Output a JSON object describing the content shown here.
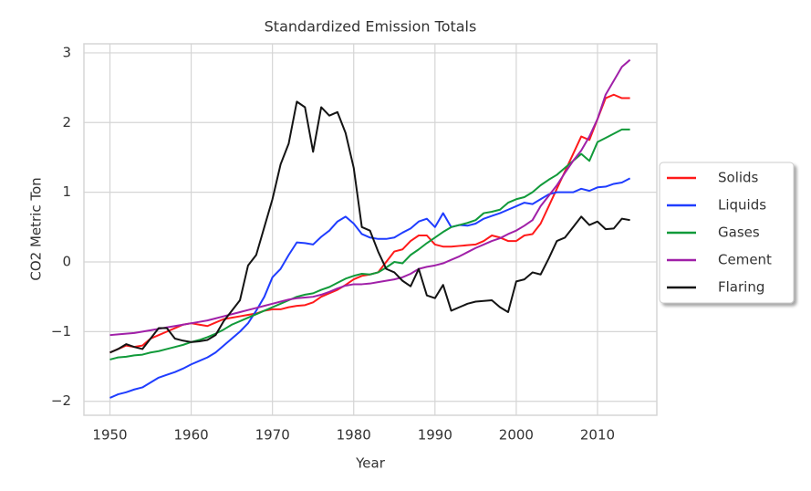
{
  "chart_data": {
    "type": "line",
    "title": "Standardized Emission Totals",
    "x_label": "Year",
    "y_label": "CO2 Metric Ton",
    "x": [
      1950,
      1951,
      1952,
      1953,
      1954,
      1955,
      1956,
      1957,
      1958,
      1959,
      1960,
      1961,
      1962,
      1963,
      1964,
      1965,
      1966,
      1967,
      1968,
      1969,
      1970,
      1971,
      1972,
      1973,
      1974,
      1975,
      1976,
      1977,
      1978,
      1979,
      1980,
      1981,
      1982,
      1983,
      1984,
      1985,
      1986,
      1987,
      1988,
      1989,
      1990,
      1991,
      1992,
      1993,
      1994,
      1995,
      1996,
      1997,
      1998,
      1999,
      2000,
      2001,
      2002,
      2003,
      2004,
      2005,
      2006,
      2007,
      2008,
      2009,
      2010,
      2011,
      2012,
      2013,
      2014
    ],
    "series": [
      {
        "name": "Solids",
        "color": "#ff1a1a",
        "values": [
          -1.3,
          -1.25,
          -1.2,
          -1.22,
          -1.2,
          -1.1,
          -1.05,
          -1.0,
          -0.95,
          -0.9,
          -0.88,
          -0.9,
          -0.92,
          -0.87,
          -0.82,
          -0.8,
          -0.78,
          -0.76,
          -0.74,
          -0.7,
          -0.68,
          -0.68,
          -0.65,
          -0.63,
          -0.62,
          -0.58,
          -0.5,
          -0.45,
          -0.4,
          -0.33,
          -0.25,
          -0.2,
          -0.18,
          -0.15,
          0.0,
          0.15,
          0.18,
          0.3,
          0.38,
          0.38,
          0.25,
          0.22,
          0.22,
          0.23,
          0.24,
          0.25,
          0.3,
          0.38,
          0.35,
          0.3,
          0.3,
          0.38,
          0.4,
          0.55,
          0.8,
          1.05,
          1.3,
          1.55,
          1.8,
          1.75,
          2.05,
          2.35,
          2.4,
          2.35,
          2.35
        ]
      },
      {
        "name": "Liquids",
        "color": "#1f3dff",
        "values": [
          -1.95,
          -1.9,
          -1.87,
          -1.83,
          -1.8,
          -1.73,
          -1.66,
          -1.62,
          -1.58,
          -1.53,
          -1.47,
          -1.42,
          -1.37,
          -1.3,
          -1.2,
          -1.1,
          -1.0,
          -0.88,
          -0.7,
          -0.5,
          -0.22,
          -0.1,
          0.1,
          0.28,
          0.27,
          0.25,
          0.36,
          0.45,
          0.58,
          0.65,
          0.55,
          0.4,
          0.35,
          0.33,
          0.33,
          0.35,
          0.42,
          0.48,
          0.58,
          0.62,
          0.5,
          0.7,
          0.5,
          0.53,
          0.52,
          0.55,
          0.62,
          0.66,
          0.7,
          0.75,
          0.8,
          0.85,
          0.83,
          0.9,
          0.97,
          1.0,
          1.0,
          1.0,
          1.05,
          1.02,
          1.07,
          1.08,
          1.12,
          1.14,
          1.2
        ]
      },
      {
        "name": "Gases",
        "color": "#119a3a",
        "values": [
          -1.4,
          -1.37,
          -1.36,
          -1.34,
          -1.33,
          -1.3,
          -1.28,
          -1.25,
          -1.22,
          -1.19,
          -1.15,
          -1.12,
          -1.08,
          -1.03,
          -0.97,
          -0.9,
          -0.85,
          -0.8,
          -0.75,
          -0.7,
          -0.65,
          -0.6,
          -0.55,
          -0.5,
          -0.47,
          -0.45,
          -0.4,
          -0.36,
          -0.3,
          -0.24,
          -0.2,
          -0.17,
          -0.18,
          -0.15,
          -0.08,
          0.0,
          -0.02,
          0.1,
          0.18,
          0.27,
          0.35,
          0.43,
          0.5,
          0.53,
          0.56,
          0.6,
          0.7,
          0.72,
          0.75,
          0.85,
          0.9,
          0.93,
          1.0,
          1.1,
          1.18,
          1.25,
          1.35,
          1.45,
          1.55,
          1.45,
          1.72,
          1.78,
          1.84,
          1.9,
          1.9
        ]
      },
      {
        "name": "Cement",
        "color": "#a020a8",
        "values": [
          -1.05,
          -1.04,
          -1.03,
          -1.02,
          -1.0,
          -0.98,
          -0.96,
          -0.94,
          -0.92,
          -0.9,
          -0.88,
          -0.86,
          -0.84,
          -0.81,
          -0.78,
          -0.75,
          -0.72,
          -0.69,
          -0.66,
          -0.63,
          -0.6,
          -0.57,
          -0.54,
          -0.52,
          -0.51,
          -0.5,
          -0.47,
          -0.43,
          -0.38,
          -0.34,
          -0.32,
          -0.32,
          -0.31,
          -0.29,
          -0.27,
          -0.25,
          -0.22,
          -0.17,
          -0.1,
          -0.07,
          -0.05,
          -0.02,
          0.03,
          0.08,
          0.14,
          0.2,
          0.25,
          0.3,
          0.34,
          0.4,
          0.45,
          0.52,
          0.6,
          0.8,
          0.95,
          1.1,
          1.28,
          1.45,
          1.6,
          1.8,
          2.05,
          2.4,
          2.6,
          2.8,
          2.9
        ]
      },
      {
        "name": "Flaring",
        "color": "#141414",
        "values": [
          -1.3,
          -1.25,
          -1.18,
          -1.22,
          -1.25,
          -1.1,
          -0.95,
          -0.95,
          -1.1,
          -1.13,
          -1.15,
          -1.14,
          -1.12,
          -1.05,
          -0.85,
          -0.7,
          -0.55,
          -0.05,
          0.1,
          0.5,
          0.9,
          1.4,
          1.7,
          2.3,
          2.22,
          1.58,
          2.22,
          2.1,
          2.15,
          1.85,
          1.35,
          0.5,
          0.45,
          0.15,
          -0.1,
          -0.15,
          -0.27,
          -0.35,
          -0.1,
          -0.48,
          -0.52,
          -0.33,
          -0.7,
          -0.65,
          -0.6,
          -0.57,
          -0.56,
          -0.55,
          -0.65,
          -0.72,
          -0.28,
          -0.25,
          -0.15,
          -0.18,
          0.05,
          0.3,
          0.35,
          0.5,
          0.65,
          0.53,
          0.58,
          0.47,
          0.48,
          0.62,
          0.6
        ]
      }
    ],
    "xlim": [
      1946.8,
      2017.3
    ],
    "ylim": [
      -2.2,
      3.13
    ],
    "xticks": [
      1950,
      1960,
      1970,
      1980,
      1990,
      2000,
      2010
    ],
    "yticks": [
      {
        "value": -2,
        "label": "−2"
      },
      {
        "value": -1,
        "label": "−1"
      },
      0,
      1,
      2,
      3
    ],
    "grid": true,
    "legend": "right"
  }
}
